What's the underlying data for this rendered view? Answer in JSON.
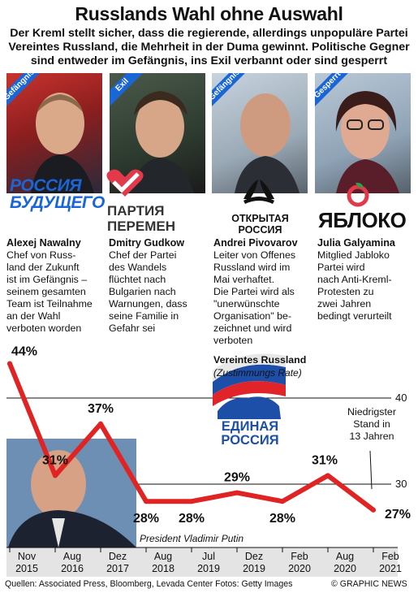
{
  "header": {
    "title": "Russlands Wahl ohne Auswahl",
    "subtitle_lines": [
      "Der Kreml stellt sicher, dass die regierende, allerdings unpopuläre Partei",
      "Vereintes Russland,  die Mehrheit in der Duma gewinnt. Politische Gegner",
      "sind entweder im Gefängnis, ins Exil verbannt oder sind gesperrt"
    ]
  },
  "politicians": [
    {
      "status": "Gefängnis",
      "status_color": "#1a66d6",
      "party_logo_lines": [
        "РОССИЯ",
        "БУДУЩЕГО"
      ],
      "name": "Alexej Nawalny",
      "desc_lines": [
        "Chef von Russ-",
        "land der Zukunft",
        "ist im Gefängnis –",
        "seinem gesamten",
        "Team ist Teilnahme",
        "an der Wahl",
        "verboten worden"
      ]
    },
    {
      "status": "Exil",
      "status_color": "#1a66d6",
      "party_logo_lines": [
        "ПАРТИЯ",
        "ПЕРЕМЕН"
      ],
      "name": "Dmitry Gudkow",
      "desc_lines": [
        "Chef der Partei",
        "des Wandels",
        "flüchtet nach",
        "Bulgarien nach",
        "Warnungen, dass",
        "seine Familie in",
        "Gefahr sei"
      ]
    },
    {
      "status": "Gefängnis",
      "status_color": "#1a66d6",
      "party_logo_lines": [
        "ОТКРЫТАЯ",
        "РОССИЯ"
      ],
      "name": "Andrei Pivovarov",
      "desc_lines": [
        "Leiter von Offenes",
        "Russland wird im",
        "Mai verhaftet.",
        "Die Partei wird als",
        "\"unerwünschte",
        "Organisation\" be-",
        "zeichnet und wird",
        "verboten"
      ]
    },
    {
      "status": "Gesperrt",
      "status_color": "#1a66d6",
      "party_logo_lines": [
        "ЯБЛОКО"
      ],
      "name": "Julia Galyamina",
      "desc_lines": [
        "Mitglied Jabloko",
        "Partei  wird",
        "nach Anti-Kreml-",
        "Protesten zu",
        "zwei Jahren",
        "bedingt verurteilt"
      ]
    }
  ],
  "chart_labels": {
    "series_label": "Vereintes Russland",
    "series_sublabel": "(Zustimmungs Rate)",
    "party_logo_lines": [
      "ЕДИНАЯ",
      "РОССИЯ"
    ],
    "annotation_lines": [
      "Niedrigster",
      "Stand in",
      "13 Jahren"
    ],
    "photo_caption": "President Vladimir Putin"
  },
  "chart_data": {
    "type": "line",
    "series": [
      {
        "name": "Vereintes Russland",
        "x": [
          "Nov 2015",
          "Aug 2016",
          "Dez 2017",
          "Aug 2018",
          "Jul 2019",
          "Dez 2019",
          "Feb 2020",
          "Aug 2020",
          "Feb 2021"
        ],
        "values": [
          44,
          31,
          37,
          28,
          28,
          29,
          28,
          31,
          27
        ],
        "value_labels": [
          "44%",
          "31%",
          "37%",
          "28%",
          "28%",
          "29%",
          "28%",
          "31%",
          "27%"
        ]
      }
    ],
    "x_tick_labels": [
      [
        "Nov",
        "2015"
      ],
      [
        "Aug",
        "2016"
      ],
      [
        "Dez",
        "2017"
      ],
      [
        "Aug",
        "2018"
      ],
      [
        "Jul",
        "2019"
      ],
      [
        "Dez",
        "2019"
      ],
      [
        "Feb",
        "2020"
      ],
      [
        "Aug",
        "2020"
      ],
      [
        "Feb",
        "2021"
      ]
    ],
    "y_ticks": [
      30,
      40
    ],
    "ylim": [
      25,
      46
    ],
    "line_color": "#e02424",
    "grid": true,
    "xlabel": "",
    "ylabel": ""
  },
  "footer": {
    "sources": "Quellen: Associated Press, Bloomberg, Levada Center  Fotos: Getty Images",
    "brand": "© GRAPHIC NEWS"
  }
}
